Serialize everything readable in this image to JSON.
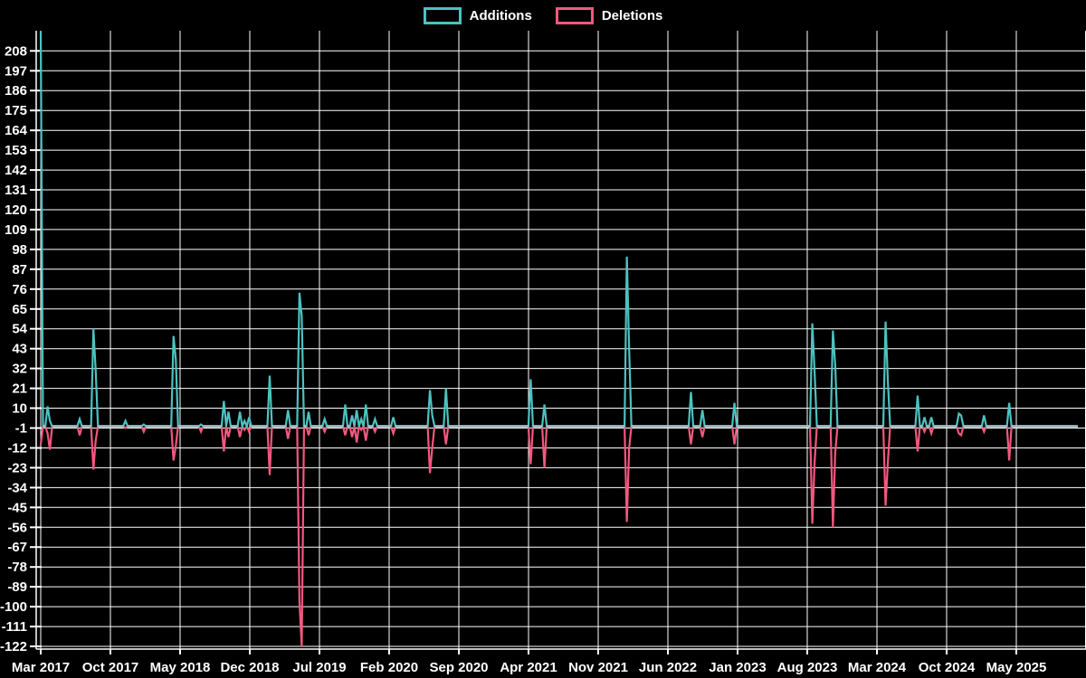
{
  "legend": {
    "items": [
      {
        "label": "Additions",
        "color": "#4cc2c0"
      },
      {
        "label": "Deletions",
        "color": "#f2587e"
      }
    ]
  },
  "chart_data": {
    "type": "line",
    "title": "",
    "xlabel": "",
    "ylabel": "",
    "grid": true,
    "background_color": "#000000",
    "grid_color": "#ffffff",
    "label_color": "#ffffff",
    "baseline_overlap_color": "#a9c1c8",
    "series": [
      {
        "name": "Additions",
        "color": "#4cc2c0"
      },
      {
        "name": "Deletions",
        "color": "#f2587e"
      }
    ],
    "y_axis": {
      "tick_labels": [
        "208",
        "197",
        "186",
        "175",
        "164",
        "153",
        "142",
        "131",
        "120",
        "109",
        "98",
        "87",
        "76",
        "65",
        "54",
        "43",
        "32",
        "21",
        "10",
        "-1",
        "-12",
        "-23",
        "-34",
        "-45",
        "-56",
        "-67",
        "-78",
        "-89",
        "-100",
        "-111",
        "-122"
      ],
      "tick_values": [
        208,
        197,
        186,
        175,
        164,
        153,
        142,
        131,
        120,
        109,
        98,
        87,
        76,
        65,
        54,
        43,
        32,
        21,
        10,
        -1,
        -12,
        -23,
        -34,
        -45,
        -56,
        -67,
        -78,
        -89,
        -100,
        -111,
        -122
      ],
      "min": -122,
      "max": 208,
      "step": 11
    },
    "x_axis": {
      "tick_labels": [
        "Mar 2017",
        "Oct 2017",
        "May 2018",
        "Dec 2018",
        "Jul 2019",
        "Feb 2020",
        "Sep 2020",
        "Apr 2021",
        "Nov 2021",
        "Jun 2022",
        "Jan 2023",
        "Aug 2023",
        "Mar 2024",
        "Oct 2024",
        "May 2025"
      ],
      "months_per_tick": 7,
      "start_month": 0,
      "end_month": 104.3
    },
    "baseline_value": 0,
    "events_note": "month = months after Mar 2017; weeks without an event are additions 0 / deletions 0",
    "events": [
      {
        "month": 0.1,
        "additions": 219,
        "deletions": -10
      },
      {
        "month": 0.6,
        "additions": 11,
        "deletions": -4
      },
      {
        "month": 0.85,
        "additions": 3,
        "deletions": -13
      },
      {
        "month": 4.0,
        "additions": 4,
        "deletions": -5
      },
      {
        "month": 5.35,
        "additions": 54,
        "deletions": -24
      },
      {
        "month": 5.6,
        "additions": 31,
        "deletions": -8
      },
      {
        "month": 8.6,
        "additions": 3,
        "deletions": -1
      },
      {
        "month": 10.3,
        "additions": 1,
        "deletions": -3
      },
      {
        "month": 13.25,
        "additions": 50,
        "deletions": -19
      },
      {
        "month": 13.5,
        "additions": 37,
        "deletions": -11
      },
      {
        "month": 16.2,
        "additions": 1,
        "deletions": -3
      },
      {
        "month": 18.5,
        "additions": 14,
        "deletions": -14
      },
      {
        "month": 18.75,
        "additions": 8,
        "deletions": -6
      },
      {
        "month": 20.1,
        "additions": 8,
        "deletions": -6
      },
      {
        "month": 20.55,
        "additions": 3,
        "deletions": -2
      },
      {
        "month": 21.0,
        "additions": 5,
        "deletions": -3
      },
      {
        "month": 22.9,
        "additions": 28,
        "deletions": -27
      },
      {
        "month": 24.9,
        "additions": 9,
        "deletions": -7
      },
      {
        "month": 25.9,
        "additions": 74,
        "deletions": -97
      },
      {
        "month": 26.15,
        "additions": 61,
        "deletions": -122
      },
      {
        "month": 27.0,
        "additions": 8,
        "deletions": -5
      },
      {
        "month": 28.5,
        "additions": 4,
        "deletions": -3
      },
      {
        "month": 30.5,
        "additions": 12,
        "deletions": -5
      },
      {
        "month": 31.3,
        "additions": 6,
        "deletions": -6
      },
      {
        "month": 31.7,
        "additions": 9,
        "deletions": -9
      },
      {
        "month": 32.1,
        "additions": 4,
        "deletions": -2
      },
      {
        "month": 32.55,
        "additions": 12,
        "deletions": -8
      },
      {
        "month": 33.6,
        "additions": 4,
        "deletions": -3
      },
      {
        "month": 35.5,
        "additions": 5,
        "deletions": -4
      },
      {
        "month": 39.1,
        "additions": 20,
        "deletions": -26
      },
      {
        "month": 39.35,
        "additions": 6,
        "deletions": -12
      },
      {
        "month": 40.7,
        "additions": 21,
        "deletions": -10
      },
      {
        "month": 49.3,
        "additions": 26,
        "deletions": -21
      },
      {
        "month": 50.6,
        "additions": 12,
        "deletions": -23
      },
      {
        "month": 58.9,
        "additions": 94,
        "deletions": -53
      },
      {
        "month": 59.15,
        "additions": 43,
        "deletions": -12
      },
      {
        "month": 65.3,
        "additions": 19,
        "deletions": -10
      },
      {
        "month": 66.4,
        "additions": 9,
        "deletions": -6
      },
      {
        "month": 69.8,
        "additions": 13,
        "deletions": -10
      },
      {
        "month": 77.6,
        "additions": 57,
        "deletions": -54
      },
      {
        "month": 77.85,
        "additions": 30,
        "deletions": -20
      },
      {
        "month": 79.5,
        "additions": 53,
        "deletions": -56
      },
      {
        "month": 79.75,
        "additions": 34,
        "deletions": -15
      },
      {
        "month": 84.85,
        "additions": 58,
        "deletions": -44
      },
      {
        "month": 85.1,
        "additions": 25,
        "deletions": -20
      },
      {
        "month": 88.0,
        "additions": 17,
        "deletions": -14
      },
      {
        "month": 88.8,
        "additions": 5,
        "deletions": -3
      },
      {
        "month": 89.5,
        "additions": 5,
        "deletions": -4
      },
      {
        "month": 92.2,
        "additions": 7,
        "deletions": -4
      },
      {
        "month": 92.55,
        "additions": 6,
        "deletions": -5
      },
      {
        "month": 94.8,
        "additions": 6,
        "deletions": -3
      },
      {
        "month": 97.3,
        "additions": 13,
        "deletions": -19
      }
    ]
  }
}
